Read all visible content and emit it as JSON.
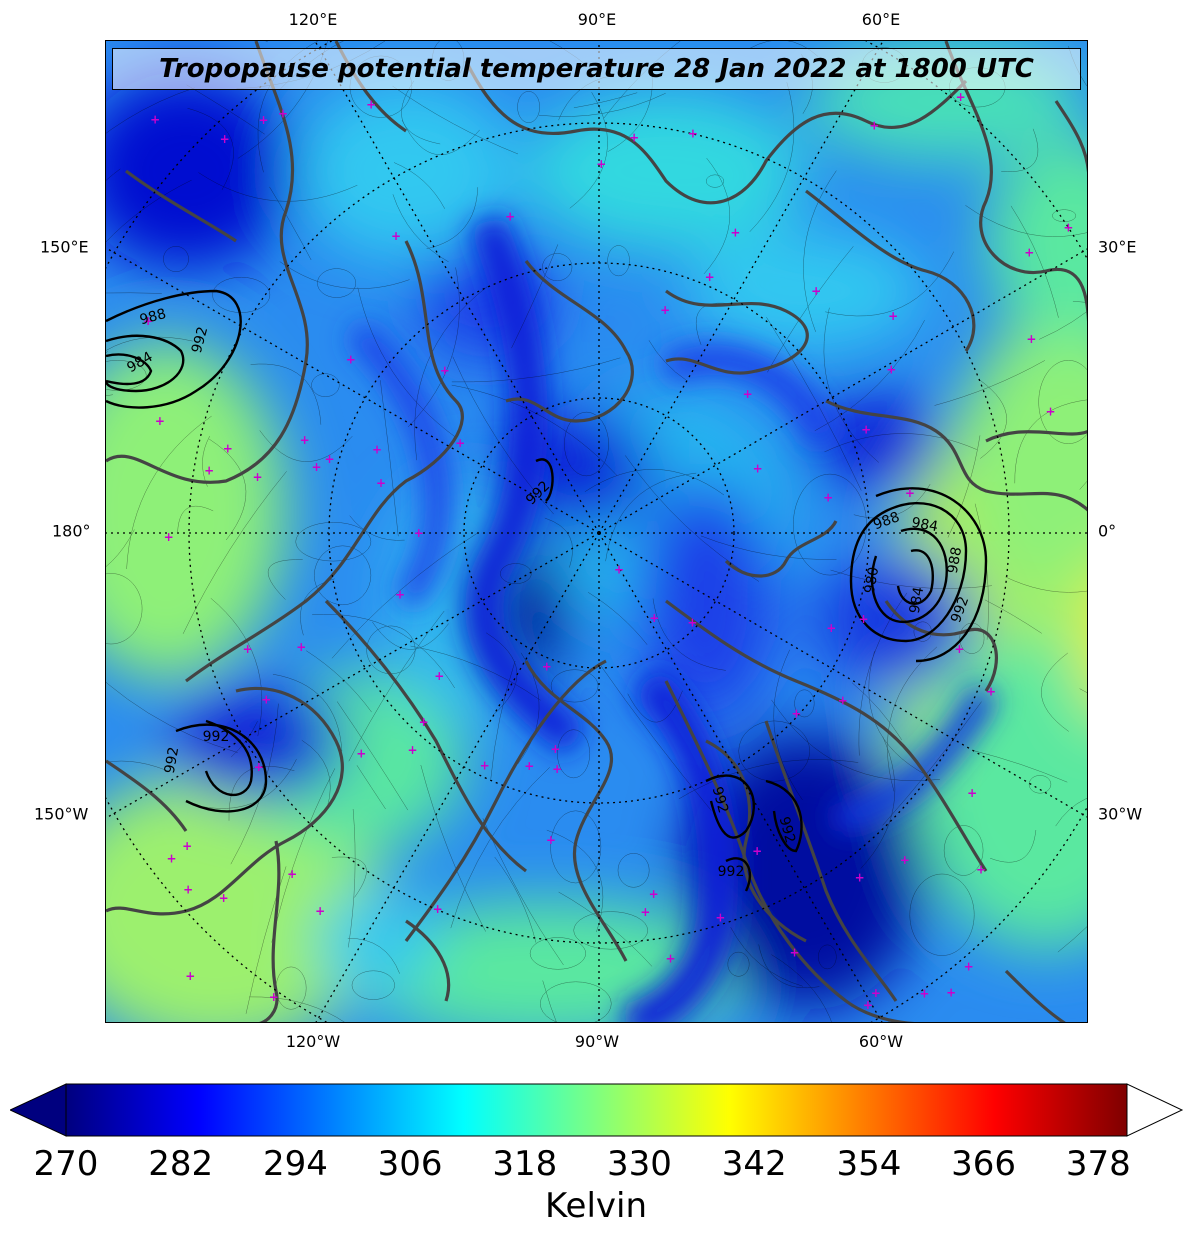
{
  "title": "Tropopause potential temperature 28 Jan 2022 at 1800 UTC",
  "map": {
    "projection": "north-polar-stereographic",
    "graticule": "dotted",
    "coastline_color": "#444444",
    "contour_color": "#000000",
    "marker_color": "#cc00cc",
    "marker_symbol": "+",
    "top_labels": [
      "120°E",
      "90°E",
      "60°E"
    ],
    "bottom_labels": [
      "120°W",
      "90°W",
      "60°W"
    ],
    "left_labels": [
      "150°E",
      "180°",
      "150°W"
    ],
    "right_labels": [
      "30°E",
      "0°",
      "30°W"
    ],
    "pressure_contour_labels": [
      "988",
      "984",
      "992",
      "992",
      "988",
      "984",
      "980",
      "984",
      "988",
      "992",
      "992",
      "992",
      "992",
      "992",
      "992"
    ]
  },
  "colorbar": {
    "label": "Kelvin",
    "ticks": [
      "270",
      "282",
      "294",
      "306",
      "318",
      "330",
      "342",
      "354",
      "366",
      "378"
    ],
    "min": 270,
    "max": 381,
    "colormap": "jet",
    "extend_min": true,
    "extend_max": true,
    "below_color": "#00007f",
    "above_color": "#ffffff",
    "stops": [
      "#00007f",
      "#0000ff",
      "#007fff",
      "#00ffff",
      "#7fff7f",
      "#ffff00",
      "#ff7f00",
      "#ff0000",
      "#7f0000"
    ]
  }
}
